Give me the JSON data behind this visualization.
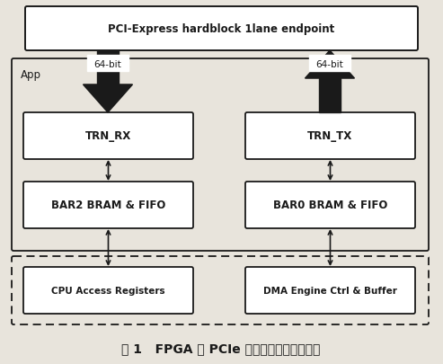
{
  "bg_color": "#e8e4dc",
  "title": "图 1   FPGA 的 PCIe 接口及事物控制器设计",
  "pcie_label": "PCI-Express hardblock 1lane endpoint",
  "app_label": "App",
  "trn_rx_label": "TRN_RX",
  "trn_tx_label": "TRN_TX",
  "bar2_label": "BAR2 BRAM & FIFO",
  "bar0_label": "BAR0 BRAM & FIFO",
  "cpu_label": "CPU Access Registers",
  "dma_label": "DMA Engine Ctrl & Buffer",
  "label_64bit": "64-bit",
  "line_color": "#1a1a1a",
  "fill_white": "#ffffff",
  "font_size_main": 8.5,
  "font_size_small": 7.5
}
